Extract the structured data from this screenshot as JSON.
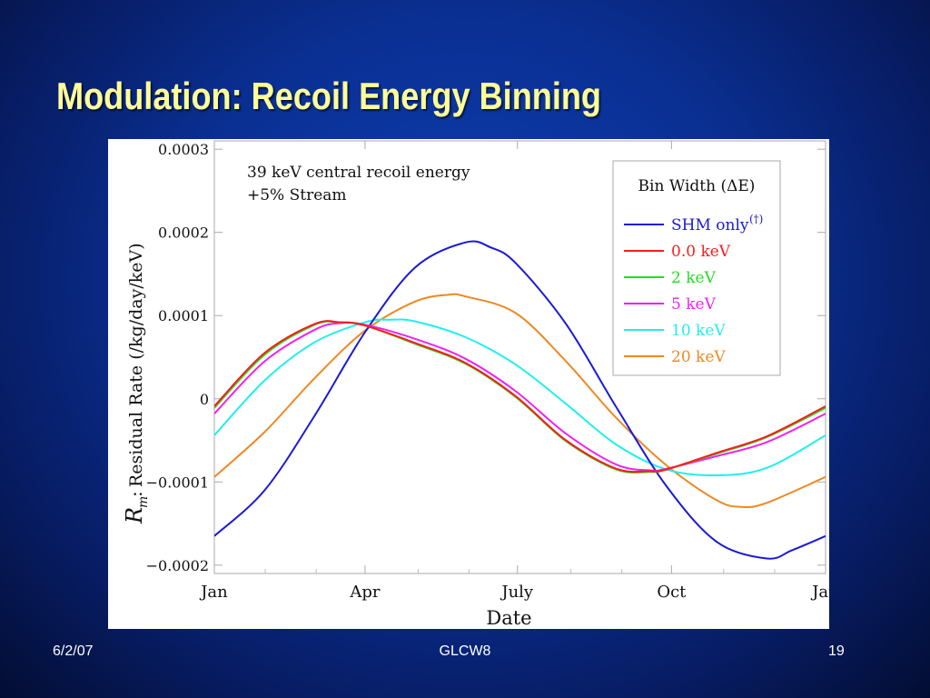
{
  "slide": {
    "title": "Modulation: Recoil Energy Binning",
    "footer_date": "6/2/07",
    "footer_center": "GLCW8",
    "page_number": "19"
  },
  "colors": {
    "title": "#ffff99",
    "background": "#0a2f92"
  },
  "chart_data": {
    "type": "line",
    "annotation_lines": [
      "39 keV central recoil energy",
      "+5% Stream"
    ],
    "xlabel": "Date",
    "ylabel": "Residual Rate (/kg/day/keV)",
    "ylabel_symbol": "R",
    "ylabel_subscript": "m",
    "xtick_labels": [
      "Jan",
      "Apr",
      "July",
      "Oct",
      "Jan"
    ],
    "xtick_days": [
      0,
      90,
      181,
      273,
      365
    ],
    "xlim": [
      0,
      365
    ],
    "ylim": [
      -0.00021,
      0.00031
    ],
    "ytick_values": [
      -0.0002,
      -0.0001,
      0,
      0.0001,
      0.0002,
      0.0003
    ],
    "ytick_labels": [
      "−0.0002",
      "−0.0001",
      "0",
      "0.0001",
      "0.0002",
      "0.0003"
    ],
    "legend_title": "Bin Width (ΔE)",
    "legend_position": "top-right",
    "series": [
      {
        "name": "SHM only",
        "superscript": "(†)",
        "color": "#1a1ad6",
        "x": [
          0,
          30,
          60,
          90,
          120,
          150,
          165,
          180,
          210,
          240,
          270,
          300,
          330,
          345,
          365
        ],
        "y": [
          -0.000165,
          -0.00011,
          -2e-05,
          8e-05,
          0.000158,
          0.000188,
          0.000182,
          0.000163,
          9e-05,
          -1e-05,
          -0.000105,
          -0.000172,
          -0.000192,
          -0.000182,
          -0.000165
        ]
      },
      {
        "name": "0.0 keV",
        "color": "#ff1a1a",
        "x": [
          0,
          30,
          60,
          75,
          90,
          120,
          150,
          180,
          210,
          240,
          260,
          270,
          300,
          330,
          365
        ],
        "y": [
          -9e-06,
          5.5e-05,
          9e-05,
          9.2e-05,
          8.8e-05,
          6.7e-05,
          4.3e-05,
          3e-06,
          -5e-05,
          -8.4e-05,
          -8.7e-05,
          -8.5e-05,
          -6.5e-05,
          -4.5e-05,
          -9e-06
        ]
      },
      {
        "name": "2 keV",
        "color": "#22dd22",
        "x": [
          0,
          30,
          60,
          75,
          90,
          120,
          150,
          180,
          210,
          240,
          260,
          270,
          300,
          330,
          365
        ],
        "y": [
          -1.1e-05,
          5.3e-05,
          8.9e-05,
          9.2e-05,
          8.8e-05,
          6.6e-05,
          4.2e-05,
          2e-06,
          -5.1e-05,
          -8.5e-05,
          -8.8e-05,
          -8.5e-05,
          -6.6e-05,
          -4.6e-05,
          -1.1e-05
        ]
      },
      {
        "name": "5 keV",
        "color": "#ee22ee",
        "x": [
          0,
          30,
          60,
          75,
          90,
          120,
          150,
          180,
          210,
          240,
          260,
          270,
          300,
          330,
          365
        ],
        "y": [
          -1.8e-05,
          4.5e-05,
          8.3e-05,
          9.1e-05,
          8.9e-05,
          7.2e-05,
          4.8e-05,
          9e-06,
          -4.2e-05,
          -7.9e-05,
          -8.6e-05,
          -8.4e-05,
          -6.9e-05,
          -5.2e-05,
          -1.8e-05
        ]
      },
      {
        "name": "10 keV",
        "color": "#22eeee",
        "x": [
          0,
          30,
          60,
          90,
          105,
          120,
          150,
          180,
          210,
          240,
          270,
          300,
          330,
          365
        ],
        "y": [
          -4.4e-05,
          2.2e-05,
          6.8e-05,
          9.2e-05,
          9.5e-05,
          9.3e-05,
          7.4e-05,
          4.1e-05,
          -6e-06,
          -5.5e-05,
          -8.5e-05,
          -9.2e-05,
          -8.3e-05,
          -4.4e-05
        ]
      },
      {
        "name": "20 keV",
        "color": "#ee8822",
        "x": [
          0,
          30,
          60,
          90,
          120,
          140,
          150,
          180,
          210,
          240,
          270,
          300,
          315,
          330,
          365
        ],
        "y": [
          -9.4e-05,
          -4e-05,
          2.5e-05,
          8.2e-05,
          0.000117,
          0.000125,
          0.000123,
          0.000103,
          4.5e-05,
          -2.3e-05,
          -8e-05,
          -0.000122,
          -0.00013,
          -0.000125,
          -9.4e-05
        ]
      }
    ]
  }
}
